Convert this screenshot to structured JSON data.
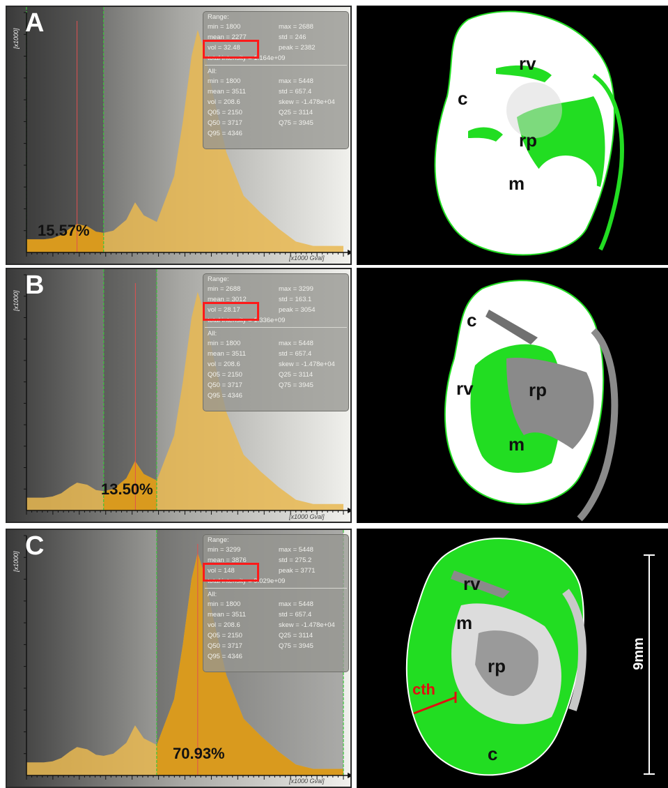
{
  "colors": {
    "fill": "#e9b851",
    "fill_selected": "#d99a1e",
    "green_line": "#39c739",
    "red_line": "#e05050",
    "stats_bg": "#9a9a96",
    "highlight_box": "#ff1a1a",
    "kidney_green": "#22dd22"
  },
  "axis": {
    "y_label": "[x1000]",
    "x_label": "[x1000 Gval]"
  },
  "panels": [
    {
      "letter": "A",
      "percent": "15.57%",
      "range": {
        "title": "Range:",
        "min": "min = 1800",
        "max": "max = 2688",
        "mean": "mean = 2277",
        "std": "std = 246",
        "vol": "vol = 32.48",
        "peak": "peak = 2382",
        "total": "total intensity = 1.164e+09"
      },
      "all": {
        "title": "All:",
        "min": "min = 1800",
        "max": "max = 5448",
        "mean": "mean = 3511",
        "std": "std = 657.4",
        "vol": "vol = 208.6",
        "skew": "skew = -1.478e+04",
        "q05": "Q05 = 2150",
        "q25": "Q25 = 3114",
        "q50": "Q50 = 3717",
        "q75": "Q75 = 3945",
        "q95": "Q95 = 4346"
      },
      "labels": {
        "c": "c",
        "rv": "rv",
        "rp": "rp",
        "m": "m"
      }
    },
    {
      "letter": "B",
      "percent": "13.50%",
      "range": {
        "title": "Range:",
        "min": "min = 2688",
        "max": "max = 3299",
        "mean": "mean = 3012",
        "std": "std = 163.1",
        "vol": "vol = 28.17",
        "peak": "peak = 3054",
        "total": "total intensity = 1.336e+09"
      },
      "all": {
        "title": "All:",
        "min": "min = 1800",
        "max": "max = 5448",
        "mean": "mean = 3511",
        "std": "std = 657.4",
        "vol": "vol = 208.6",
        "skew": "skew = -1.478e+04",
        "q05": "Q05 = 2150",
        "q25": "Q25 = 3114",
        "q50": "Q50 = 3717",
        "q75": "Q75 = 3945",
        "q95": "Q95 = 4346"
      },
      "labels": {
        "c": "c",
        "rv": "rv",
        "rp": "rp",
        "m": "m"
      }
    },
    {
      "letter": "C",
      "percent": "70.93%",
      "range": {
        "title": "Range:",
        "min": "min = 3299",
        "max": "max = 5448",
        "mean": "mean = 3876",
        "std": "std = 275.2",
        "vol": "vol = 148",
        "peak": "peak = 3771",
        "total": "total intensity = 9.029e+09"
      },
      "all": {
        "title": "All:",
        "min": "min = 1800",
        "max": "max = 5448",
        "mean": "mean = 3511",
        "std": "std = 657.4",
        "vol": "vol = 208.6",
        "skew": "skew = -1.478e+04",
        "q05": "Q05 = 2150",
        "q25": "Q25 = 3114",
        "q50": "Q50 = 3717",
        "q75": "Q75 = 3945",
        "q95": "Q95 = 4346"
      },
      "labels": {
        "c": "c",
        "rv": "rv",
        "rp": "rp",
        "m": "m",
        "cth": "cth"
      },
      "scale_bar": "9mm"
    }
  ],
  "chart_data": [
    {
      "type": "area",
      "panel": "A",
      "x": [
        1.8,
        2.0,
        2.1,
        2.2,
        2.3,
        2.382,
        2.5,
        2.6,
        2.688,
        2.8,
        2.95,
        3.05,
        3.15,
        3.3,
        3.5,
        3.6,
        3.7,
        3.771,
        3.85,
        3.95,
        4.1,
        4.3,
        4.5,
        4.7,
        4.9,
        5.1,
        5.3,
        5.448
      ],
      "values": [
        0.6,
        0.6,
        0.65,
        0.8,
        1.1,
        1.3,
        1.2,
        0.95,
        0.9,
        1.0,
        1.5,
        2.3,
        1.7,
        1.4,
        3.5,
        6.0,
        9.0,
        10.2,
        9.2,
        7.2,
        4.6,
        2.6,
        1.8,
        1.1,
        0.5,
        0.3,
        0.3,
        0.3
      ],
      "selected_range": [
        1800,
        2688
      ],
      "ylim": [
        0,
        11
      ],
      "xlim": [
        1.8,
        5.448
      ],
      "percent_selected": "15.57%"
    },
    {
      "type": "area",
      "panel": "B",
      "selected_range": [
        2688,
        3299
      ],
      "percent_selected": "13.50%"
    },
    {
      "type": "area",
      "panel": "C",
      "selected_range": [
        3299,
        5448
      ],
      "percent_selected": "70.93%"
    }
  ]
}
